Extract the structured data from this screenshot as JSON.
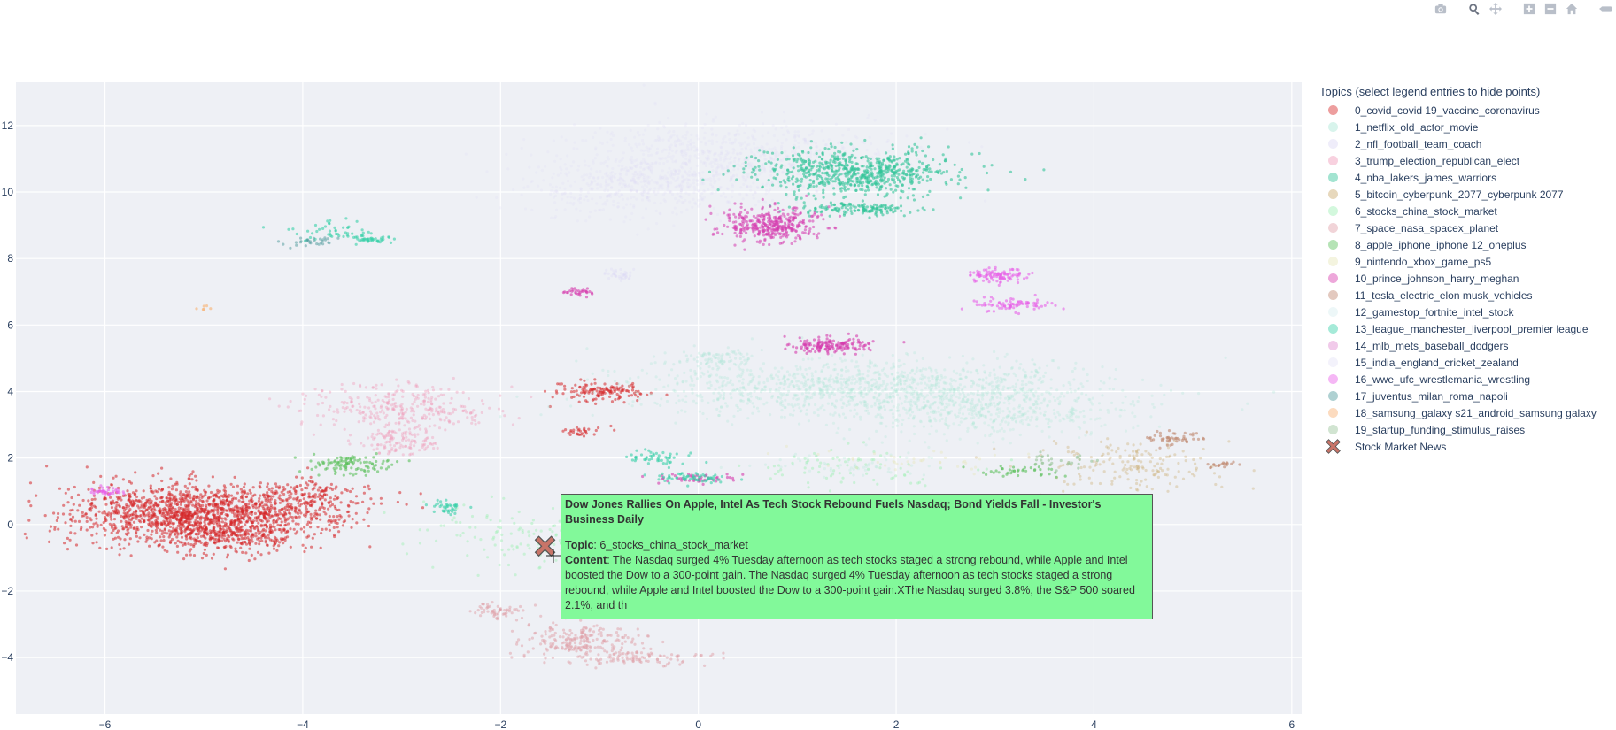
{
  "modebar": {
    "buttons": [
      {
        "name": "camera-icon",
        "active": false
      },
      {
        "name": "zoom-icon",
        "active": true
      },
      {
        "name": "pan-icon",
        "active": false
      },
      {
        "name": "zoom-in-icon",
        "active": false
      },
      {
        "name": "zoom-out-icon",
        "active": false
      },
      {
        "name": "home-icon",
        "active": false
      },
      {
        "name": "plotly-logo-icon",
        "active": false
      }
    ]
  },
  "legend": {
    "title": "Topics (select legend entries to hide points)",
    "items": [
      {
        "label": "0_covid_covid 19_vaccine_coronavirus",
        "color": "#d62728"
      },
      {
        "label": "1_netflix_old_actor_movie",
        "color": "#a8e6d4"
      },
      {
        "label": "2_nfl_football_team_coach",
        "color": "#dcd8f5"
      },
      {
        "label": "3_trump_election_republican_elect",
        "color": "#f09ab8"
      },
      {
        "label": "4_nba_lakers_james_warriors",
        "color": "#34c49a"
      },
      {
        "label": "5_bitcoin_cyberpunk_2077_cyberpunk 2077",
        "color": "#c9a86a"
      },
      {
        "label": "6_stocks_china_stock_market",
        "color": "#9ef0b4"
      },
      {
        "label": "7_space_nasa_spacex_planet",
        "color": "#e0a0a8"
      },
      {
        "label": "8_apple_iphone_iphone 12_oneplus",
        "color": "#5cc05c"
      },
      {
        "label": "9_nintendo_xbox_game_ps5",
        "color": "#e6e6b8"
      },
      {
        "label": "10_prince_johnson_harry_meghan",
        "color": "#d63cae"
      },
      {
        "label": "11_tesla_electric_elon musk_vehicles",
        "color": "#c08870"
      },
      {
        "label": "12_gamestop_fortnite_intel_stock",
        "color": "#d6eef0"
      },
      {
        "label": "13_league_manchester_liverpool_premier league",
        "color": "#38d0a8"
      },
      {
        "label": "14_mlb_mets_baseball_dodgers",
        "color": "#e08ad0"
      },
      {
        "label": "15_india_england_cricket_zealand",
        "color": "#e4e2f6"
      },
      {
        "label": "16_wwe_ufc_wrestlemania_wrestling",
        "color": "#e860e8"
      },
      {
        "label": "17_juventus_milan_roma_napoli",
        "color": "#4e9a9c"
      },
      {
        "label": "18_samsung_galaxy s21_android_samsung galaxy",
        "color": "#f8b070"
      },
      {
        "label": "19_startup_funding_stimulus_raises",
        "color": "#9ac49a"
      },
      {
        "label": "Stock Market News",
        "color": "#c87468",
        "symbol": "x"
      }
    ]
  },
  "hover": {
    "title": "Dow Jones Rallies On Apple, Intel As Tech Stock Rebound Fuels Nasdaq; Bond Yields Fall - Investor's Business Daily",
    "topic_key": "Topic",
    "topic_value": ": 6_stocks_china_stock_market",
    "content_key": "Content",
    "content_value": ": The Nasdaq surged 4% Tuesday afternoon as tech stocks staged a strong rebound, while Apple and Intel boosted the Dow to a 300-point gain. The Nasdaq surged 4% Tuesday afternoon as tech stocks staged a strong rebound, while Apple and Intel boosted the Dow to a 300-point gain.XThe Nasdaq surged 3.8%, the S&P 500 soared 2.1%, and th",
    "background": "#82f99a"
  },
  "chart_data": {
    "type": "scatter",
    "title": "",
    "xlabel": "",
    "ylabel": "",
    "xlim": [
      -6.9,
      6.1
    ],
    "ylim": [
      -5.7,
      13.3
    ],
    "xticks": [
      -6,
      -4,
      -2,
      0,
      2,
      4,
      6
    ],
    "yticks": [
      -4,
      -2,
      0,
      2,
      4,
      6,
      8,
      10,
      12
    ],
    "grid": true,
    "plot_background": "#eef0f5",
    "legend_placement": "right",
    "clusters": [
      {
        "topic": 0,
        "cx": -5.3,
        "cy": 0.3,
        "sx": 0.55,
        "sy": 0.45,
        "n": 1100,
        "opacity": 0.55
      },
      {
        "topic": 0,
        "cx": -4.3,
        "cy": 0.5,
        "sx": 0.5,
        "sy": 0.35,
        "n": 450,
        "opacity": 0.55
      },
      {
        "topic": 0,
        "cx": -4.7,
        "cy": -0.3,
        "sx": 0.35,
        "sy": 0.3,
        "n": 300,
        "opacity": 0.55
      },
      {
        "topic": 0,
        "cx": -3.9,
        "cy": 1.1,
        "sx": 0.2,
        "sy": 0.15,
        "n": 60,
        "opacity": 0.55
      },
      {
        "topic": 0,
        "cx": -1.0,
        "cy": 4.0,
        "sx": 0.22,
        "sy": 0.15,
        "n": 140,
        "opacity": 0.55
      },
      {
        "topic": 0,
        "cx": -1.2,
        "cy": 2.8,
        "sx": 0.1,
        "sy": 0.08,
        "n": 30,
        "opacity": 0.55
      },
      {
        "topic": 1,
        "cx": 1.8,
        "cy": 4.1,
        "sx": 1.2,
        "sy": 0.45,
        "n": 1300,
        "opacity": 0.28
      },
      {
        "topic": 1,
        "cx": 3.0,
        "cy": 3.3,
        "sx": 0.6,
        "sy": 0.35,
        "n": 350,
        "opacity": 0.25
      },
      {
        "topic": 1,
        "cx": 0.2,
        "cy": 5.0,
        "sx": 0.2,
        "sy": 0.15,
        "n": 80,
        "opacity": 0.3
      },
      {
        "topic": 1,
        "cx": 1.5,
        "cy": 1.8,
        "sx": 0.4,
        "sy": 0.15,
        "n": 60,
        "opacity": 0.25
      },
      {
        "topic": 2,
        "cx": 0.4,
        "cy": 11.0,
        "sx": 0.8,
        "sy": 0.55,
        "n": 800,
        "opacity": 0.2
      },
      {
        "topic": 2,
        "cx": -0.6,
        "cy": 10.2,
        "sx": 0.6,
        "sy": 0.5,
        "n": 500,
        "opacity": 0.2
      },
      {
        "topic": 2,
        "cx": -0.8,
        "cy": 7.5,
        "sx": 0.1,
        "sy": 0.08,
        "n": 40,
        "opacity": 0.3
      },
      {
        "topic": 3,
        "cx": -3.0,
        "cy": 3.5,
        "sx": 0.5,
        "sy": 0.35,
        "n": 320,
        "opacity": 0.4
      },
      {
        "topic": 3,
        "cx": -3.0,
        "cy": 2.5,
        "sx": 0.2,
        "sy": 0.2,
        "n": 120,
        "opacity": 0.4
      },
      {
        "topic": 4,
        "cx": 1.6,
        "cy": 10.6,
        "sx": 0.5,
        "sy": 0.35,
        "n": 700,
        "opacity": 0.6
      },
      {
        "topic": 4,
        "cx": 1.6,
        "cy": 9.5,
        "sx": 0.3,
        "sy": 0.1,
        "n": 150,
        "opacity": 0.6
      },
      {
        "topic": 5,
        "cx": 4.3,
        "cy": 1.8,
        "sx": 0.45,
        "sy": 0.4,
        "n": 180,
        "opacity": 0.35
      },
      {
        "topic": 6,
        "cx": -1.6,
        "cy": -0.4,
        "sx": 0.6,
        "sy": 0.5,
        "n": 160,
        "opacity": 0.45
      },
      {
        "topic": 6,
        "cx": 1.6,
        "cy": 1.7,
        "sx": 0.6,
        "sy": 0.3,
        "n": 80,
        "opacity": 0.45
      },
      {
        "topic": 7,
        "cx": -1.2,
        "cy": -3.5,
        "sx": 0.3,
        "sy": 0.25,
        "n": 220,
        "opacity": 0.5
      },
      {
        "topic": 7,
        "cx": -2.0,
        "cy": -2.6,
        "sx": 0.15,
        "sy": 0.1,
        "n": 60,
        "opacity": 0.5
      },
      {
        "topic": 7,
        "cx": -0.6,
        "cy": -4.0,
        "sx": 0.4,
        "sy": 0.12,
        "n": 100,
        "opacity": 0.5
      },
      {
        "topic": 8,
        "cx": -3.5,
        "cy": 1.8,
        "sx": 0.2,
        "sy": 0.15,
        "n": 110,
        "opacity": 0.6
      },
      {
        "topic": 8,
        "cx": 3.2,
        "cy": 1.6,
        "sx": 0.2,
        "sy": 0.1,
        "n": 40,
        "opacity": 0.6
      },
      {
        "topic": 9,
        "cx": 2.1,
        "cy": 1.9,
        "sx": 0.5,
        "sy": 0.15,
        "n": 40,
        "opacity": 0.4
      },
      {
        "topic": 10,
        "cx": 0.75,
        "cy": 9.0,
        "sx": 0.25,
        "sy": 0.25,
        "n": 380,
        "opacity": 0.55
      },
      {
        "topic": 10,
        "cx": 1.35,
        "cy": 5.4,
        "sx": 0.2,
        "sy": 0.12,
        "n": 160,
        "opacity": 0.6
      },
      {
        "topic": 10,
        "cx": -1.2,
        "cy": 7.0,
        "sx": 0.08,
        "sy": 0.06,
        "n": 30,
        "opacity": 0.6
      },
      {
        "topic": 10,
        "cx": 0.0,
        "cy": 1.4,
        "sx": 0.2,
        "sy": 0.08,
        "n": 50,
        "opacity": 0.6
      },
      {
        "topic": 11,
        "cx": 4.8,
        "cy": 2.6,
        "sx": 0.15,
        "sy": 0.1,
        "n": 50,
        "opacity": 0.6
      },
      {
        "topic": 11,
        "cx": 5.3,
        "cy": 1.8,
        "sx": 0.08,
        "sy": 0.05,
        "n": 20,
        "opacity": 0.6
      },
      {
        "topic": 13,
        "cx": -3.7,
        "cy": 8.8,
        "sx": 0.2,
        "sy": 0.15,
        "n": 50,
        "opacity": 0.6
      },
      {
        "topic": 13,
        "cx": -3.3,
        "cy": 8.6,
        "sx": 0.12,
        "sy": 0.06,
        "n": 40,
        "opacity": 0.6
      },
      {
        "topic": 13,
        "cx": -0.1,
        "cy": 1.4,
        "sx": 0.2,
        "sy": 0.08,
        "n": 60,
        "opacity": 0.6
      },
      {
        "topic": 13,
        "cx": -0.4,
        "cy": 2.0,
        "sx": 0.15,
        "sy": 0.1,
        "n": 50,
        "opacity": 0.6
      },
      {
        "topic": 13,
        "cx": -2.5,
        "cy": 0.5,
        "sx": 0.12,
        "sy": 0.1,
        "n": 40,
        "opacity": 0.6
      },
      {
        "topic": 16,
        "cx": 3.0,
        "cy": 7.5,
        "sx": 0.15,
        "sy": 0.1,
        "n": 100,
        "opacity": 0.6
      },
      {
        "topic": 16,
        "cx": 3.2,
        "cy": 6.6,
        "sx": 0.2,
        "sy": 0.1,
        "n": 80,
        "opacity": 0.6
      },
      {
        "topic": 16,
        "cx": -6.0,
        "cy": 1.0,
        "sx": 0.1,
        "sy": 0.08,
        "n": 40,
        "opacity": 0.6
      },
      {
        "topic": 17,
        "cx": -3.9,
        "cy": 8.5,
        "sx": 0.15,
        "sy": 0.08,
        "n": 30,
        "opacity": 0.5
      },
      {
        "topic": 18,
        "cx": -5.0,
        "cy": 6.5,
        "sx": 0.05,
        "sy": 0.05,
        "n": 6,
        "opacity": 0.6
      },
      {
        "topic": 19,
        "cx": 3.7,
        "cy": 1.9,
        "sx": 0.15,
        "sy": 0.1,
        "n": 30,
        "opacity": 0.6
      }
    ],
    "highlight": {
      "label": "Stock Market News",
      "x": -1.55,
      "y": -0.65,
      "symbol": "x",
      "color": "#c87468"
    }
  }
}
